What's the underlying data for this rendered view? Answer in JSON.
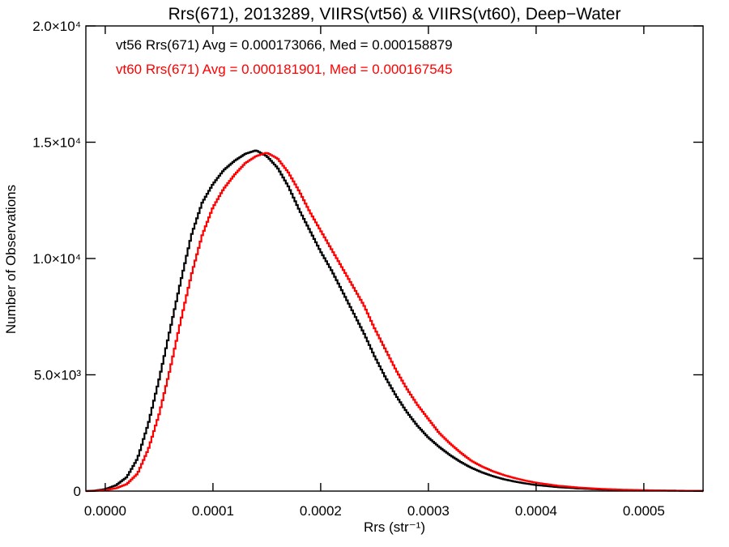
{
  "chart_data": {
    "type": "histogram-step",
    "title": "Rrs(671), 2013289, VIIRS(vt56) & VIIRS(vt60), Deep−Water",
    "xlabel": "Rrs (str⁻¹)",
    "ylabel": "Number of Observations",
    "xlim": [
      -1.8e-05,
      0.000555
    ],
    "ylim": [
      0,
      20000
    ],
    "x_ticks": [
      {
        "value": 0.0,
        "label": "0.0000"
      },
      {
        "value": 0.0001,
        "label": "0.0001"
      },
      {
        "value": 0.0002,
        "label": "0.0002"
      },
      {
        "value": 0.0003,
        "label": "0.0003"
      },
      {
        "value": 0.0004,
        "label": "0.0004"
      },
      {
        "value": 0.0005,
        "label": "0.0005"
      }
    ],
    "y_ticks": [
      {
        "value": 0,
        "label": "0"
      },
      {
        "value": 5000,
        "label": "5.0×10³"
      },
      {
        "value": 10000,
        "label": "1.0×10⁴"
      },
      {
        "value": 15000,
        "label": "1.5×10⁴"
      },
      {
        "value": 20000,
        "label": "2.0×10⁴"
      }
    ],
    "legend_position": "top-left",
    "series": [
      {
        "name": "vt56",
        "color": "#000000",
        "stats_text": "vt56 Rrs(671) Avg = 0.000173066, Med = 0.000158879",
        "points": [
          [
            -1.8e-05,
            0
          ],
          [
            -1e-05,
            20
          ],
          [
            0.0,
            80
          ],
          [
            1e-05,
            250
          ],
          [
            2e-05,
            600
          ],
          [
            3e-05,
            1400
          ],
          [
            4e-05,
            2900
          ],
          [
            5e-05,
            4800
          ],
          [
            6e-05,
            6900
          ],
          [
            7e-05,
            9000
          ],
          [
            8e-05,
            11000
          ],
          [
            9e-05,
            12400
          ],
          [
            0.0001,
            13200
          ],
          [
            0.00011,
            13800
          ],
          [
            0.00012,
            14200
          ],
          [
            0.00013,
            14500
          ],
          [
            0.00014,
            14650
          ],
          [
            0.00015,
            14400
          ],
          [
            0.00016,
            13900
          ],
          [
            0.00017,
            13100
          ],
          [
            0.00018,
            12100
          ],
          [
            0.00019,
            11200
          ],
          [
            0.0002,
            10300
          ],
          [
            0.00021,
            9500
          ],
          [
            0.00022,
            8600
          ],
          [
            0.00023,
            7700
          ],
          [
            0.00024,
            6800
          ],
          [
            0.00025,
            5800
          ],
          [
            0.00026,
            4900
          ],
          [
            0.00027,
            4100
          ],
          [
            0.00028,
            3400
          ],
          [
            0.00029,
            2800
          ],
          [
            0.0003,
            2300
          ],
          [
            0.00031,
            1900
          ],
          [
            0.00032,
            1550
          ],
          [
            0.00033,
            1250
          ],
          [
            0.00034,
            1000
          ],
          [
            0.00035,
            800
          ],
          [
            0.00036,
            640
          ],
          [
            0.00037,
            510
          ],
          [
            0.00038,
            410
          ],
          [
            0.00039,
            330
          ],
          [
            0.0004,
            260
          ],
          [
            0.00042,
            170
          ],
          [
            0.00044,
            110
          ],
          [
            0.00046,
            70
          ],
          [
            0.00048,
            45
          ],
          [
            0.0005,
            30
          ],
          [
            0.00052,
            20
          ],
          [
            0.00054,
            12
          ],
          [
            0.000555,
            8
          ]
        ]
      },
      {
        "name": "vt60",
        "color": "#ff0000",
        "stats_text": "vt60 Rrs(671) Avg = 0.000181901, Med = 0.000167545",
        "points": [
          [
            -1.8e-05,
            0
          ],
          [
            -1e-05,
            10
          ],
          [
            0.0,
            40
          ],
          [
            1e-05,
            120
          ],
          [
            2e-05,
            300
          ],
          [
            3e-05,
            750
          ],
          [
            4e-05,
            1800
          ],
          [
            5e-05,
            3300
          ],
          [
            6e-05,
            5200
          ],
          [
            7e-05,
            7300
          ],
          [
            8e-05,
            9300
          ],
          [
            9e-05,
            11000
          ],
          [
            0.0001,
            12200
          ],
          [
            0.00011,
            13000
          ],
          [
            0.00012,
            13600
          ],
          [
            0.00013,
            14100
          ],
          [
            0.00014,
            14400
          ],
          [
            0.00015,
            14550
          ],
          [
            0.00016,
            14300
          ],
          [
            0.00017,
            13700
          ],
          [
            0.00018,
            12900
          ],
          [
            0.00019,
            12000
          ],
          [
            0.0002,
            11200
          ],
          [
            0.00021,
            10400
          ],
          [
            0.00022,
            9600
          ],
          [
            0.00023,
            8800
          ],
          [
            0.00024,
            8000
          ],
          [
            0.00025,
            7000
          ],
          [
            0.00026,
            6100
          ],
          [
            0.00027,
            5200
          ],
          [
            0.00028,
            4400
          ],
          [
            0.00029,
            3700
          ],
          [
            0.0003,
            3100
          ],
          [
            0.00031,
            2500
          ],
          [
            0.00032,
            2050
          ],
          [
            0.00033,
            1650
          ],
          [
            0.00034,
            1300
          ],
          [
            0.00035,
            1050
          ],
          [
            0.00036,
            850
          ],
          [
            0.00037,
            690
          ],
          [
            0.00038,
            560
          ],
          [
            0.00039,
            450
          ],
          [
            0.0004,
            360
          ],
          [
            0.00042,
            230
          ],
          [
            0.00044,
            150
          ],
          [
            0.00046,
            95
          ],
          [
            0.00048,
            60
          ],
          [
            0.0005,
            40
          ],
          [
            0.00052,
            25
          ],
          [
            0.00054,
            15
          ],
          [
            0.000555,
            10
          ]
        ]
      }
    ]
  }
}
